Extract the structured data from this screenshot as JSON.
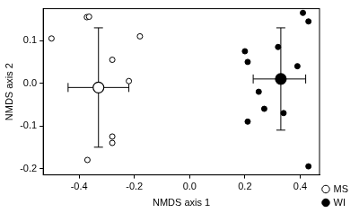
{
  "chart_data": {
    "type": "scatter",
    "x_label": "NMDS axis 1",
    "y_label": "NMDS axis 2",
    "xlim": [
      -0.53,
      0.47
    ],
    "ylim": [
      -0.215,
      0.175
    ],
    "xticks": [
      -0.4,
      -0.2,
      {
        "value": 0,
        "label": "0.0"
      },
      0.2,
      0.4
    ],
    "yticks": [
      -0.2,
      -0.1,
      {
        "value": 0,
        "label": "0.0"
      },
      0.1
    ],
    "grid": false,
    "legend": "right",
    "series": [
      {
        "name": "MS",
        "color": "#000000",
        "marker": "open",
        "values": [
          [
            -0.5,
            0.105
          ],
          [
            -0.372,
            0.155
          ],
          [
            -0.364,
            0.156
          ],
          [
            -0.18,
            0.11
          ],
          [
            -0.28,
            0.055
          ],
          [
            -0.22,
            0.005
          ],
          [
            -0.28,
            -0.125
          ],
          [
            -0.28,
            -0.14
          ],
          [
            -0.37,
            -0.18
          ]
        ],
        "centroid": [
          -0.33,
          -0.01
        ],
        "x_range": [
          -0.44,
          -0.22
        ],
        "y_range": [
          -0.15,
          0.13
        ]
      },
      {
        "name": "WI",
        "color": "#000000",
        "marker": "filled",
        "values": [
          [
            0.41,
            0.165
          ],
          [
            0.43,
            0.145
          ],
          [
            0.2,
            0.075
          ],
          [
            0.21,
            0.05
          ],
          [
            0.32,
            0.085
          ],
          [
            0.39,
            0.04
          ],
          [
            0.25,
            -0.02
          ],
          [
            0.27,
            -0.06
          ],
          [
            0.21,
            -0.09
          ],
          [
            0.34,
            -0.07
          ],
          [
            0.43,
            -0.195
          ]
        ],
        "centroid": [
          0.33,
          0.01
        ],
        "x_range": [
          0.23,
          0.42
        ],
        "y_range": [
          -0.11,
          0.13
        ]
      }
    ]
  }
}
